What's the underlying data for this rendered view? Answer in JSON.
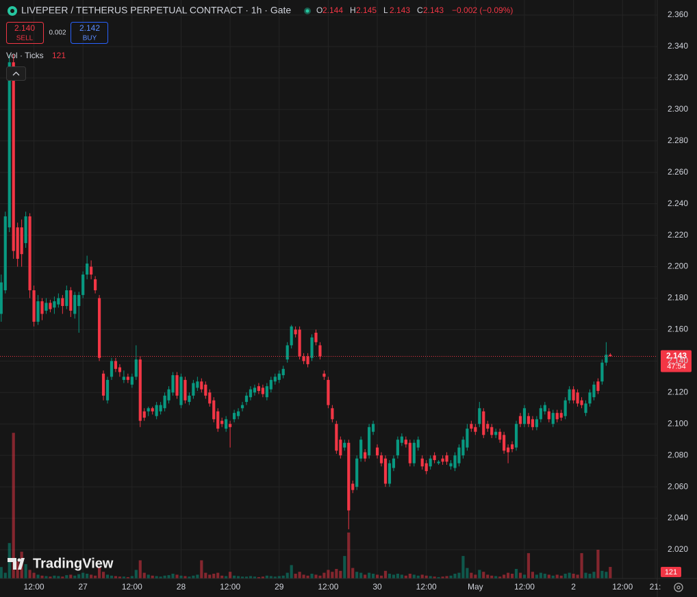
{
  "chart_data": {
    "type": "candlestick",
    "title": "LIVEPEER / TETHERUS PERPETUAL CONTRACT · 1h · Gate",
    "legend_ohlc": [
      {
        "label": "O",
        "value": 2.144
      },
      {
        "label": "H",
        "value": 2.145
      },
      {
        "label": "L",
        "value": 2.143
      },
      {
        "label": "C",
        "value": 2.143
      }
    ],
    "change": "−0.002 (−0.09%)",
    "sell": {
      "price": {
        "value": 2.14,
        "label": "2.140"
      },
      "label": "SELL"
    },
    "spread": 0.002,
    "buy": {
      "price": 2.142,
      "label": "BUY"
    },
    "volume_title": "Vol · Ticks",
    "watermark": "TradingView",
    "last_price": 2.143,
    "countdown": "47:54",
    "up_color": "#089981",
    "down_color": "#f23645",
    "xlim": [
      -0.3,
      160.5
    ],
    "xticks": [
      {
        "value": 8,
        "label": "12:00"
      },
      {
        "value": 20,
        "label": "27"
      },
      {
        "value": 32,
        "label": "12:00"
      },
      {
        "value": 44,
        "label": "28"
      },
      {
        "value": 56,
        "label": "12:00"
      },
      {
        "value": 68,
        "label": "29"
      },
      {
        "value": 80,
        "label": "12:00"
      },
      {
        "value": 92,
        "label": "30"
      },
      {
        "value": 104,
        "label": "12:00"
      },
      {
        "value": 116,
        "label": "May"
      },
      {
        "value": 128,
        "label": "12:00"
      },
      {
        "value": 140,
        "label": "2"
      },
      {
        "value": 152,
        "label": "12:00"
      },
      {
        "value": 160,
        "label": "21:"
      }
    ],
    "ylim": [
      2.0017,
      2.3696
    ],
    "yticks": [
      {
        "value": 2.02,
        "label": "2.020"
      },
      {
        "value": 2.04,
        "label": "2.040"
      },
      {
        "value": 2.06,
        "label": "2.060"
      },
      {
        "value": 2.08,
        "label": "2.080"
      },
      {
        "value": 2.1,
        "label": "2.100"
      },
      {
        "value": 2.12,
        "label": "2.120"
      },
      {
        "value": 2.14,
        "label": "2.140"
      },
      {
        "value": 2.16,
        "label": "2.160"
      },
      {
        "value": 2.18,
        "label": "2.180"
      },
      {
        "value": 2.2,
        "label": "2.200"
      },
      {
        "value": 2.22,
        "label": "2.220"
      },
      {
        "value": 2.24,
        "label": "2.240"
      },
      {
        "value": 2.26,
        "label": "2.260"
      },
      {
        "value": 2.28,
        "label": "2.280"
      },
      {
        "value": 2.3,
        "label": "2.300"
      },
      {
        "value": 2.32,
        "label": "2.320"
      },
      {
        "value": 2.34,
        "label": "2.340"
      },
      {
        "value": 2.36,
        "label": "2.360"
      }
    ],
    "grid": true,
    "candles": [
      [
        2.17,
        2.195,
        2.165,
        2.19
      ],
      [
        2.185,
        2.235,
        2.183,
        2.232
      ],
      [
        2.225,
        2.335,
        2.222,
        2.33
      ],
      [
        2.33,
        2.335,
        2.205,
        2.21
      ],
      [
        2.225,
        2.228,
        2.2,
        2.205
      ],
      [
        2.225,
        2.23,
        2.2,
        2.208
      ],
      [
        2.215,
        2.235,
        2.212,
        2.232
      ],
      [
        2.232,
        2.234,
        2.18,
        2.185
      ],
      [
        2.185,
        2.188,
        2.162,
        2.165
      ],
      [
        2.165,
        2.182,
        2.163,
        2.178
      ],
      [
        2.178,
        2.18,
        2.166,
        2.17
      ],
      [
        2.172,
        2.18,
        2.17,
        2.177
      ],
      [
        2.177,
        2.179,
        2.171,
        2.173
      ],
      [
        2.174,
        2.181,
        2.17,
        2.178
      ],
      [
        2.176,
        2.183,
        2.174,
        2.18
      ],
      [
        2.18,
        2.182,
        2.17,
        2.175
      ],
      [
        2.175,
        2.188,
        2.173,
        2.185
      ],
      [
        2.185,
        2.187,
        2.168,
        2.172
      ],
      [
        2.17,
        2.184,
        2.167,
        2.182
      ],
      [
        2.175,
        2.184,
        2.158,
        2.182
      ],
      [
        2.182,
        2.197,
        2.18,
        2.195
      ],
      [
        2.195,
        2.207,
        2.192,
        2.202
      ],
      [
        2.2,
        2.204,
        2.192,
        2.195
      ],
      [
        2.192,
        2.194,
        2.183,
        2.185
      ],
      [
        2.18,
        2.182,
        2.14,
        2.142
      ],
      [
        2.132,
        2.134,
        2.115,
        2.118
      ],
      [
        2.115,
        2.13,
        2.113,
        2.128
      ],
      [
        2.13,
        2.142,
        2.128,
        2.14
      ],
      [
        2.14,
        2.142,
        2.133,
        2.135
      ],
      [
        2.136,
        2.138,
        2.13,
        2.133
      ],
      [
        2.128,
        2.134,
        2.126,
        2.13
      ],
      [
        2.13,
        2.132,
        2.126,
        2.128
      ],
      [
        2.125,
        2.132,
        2.123,
        2.13
      ],
      [
        2.13,
        2.15,
        2.128,
        2.141
      ],
      [
        2.141,
        2.143,
        2.098,
        2.102
      ],
      [
        2.108,
        2.11,
        2.102,
        2.104
      ],
      [
        2.108,
        2.111,
        2.105,
        2.11
      ],
      [
        2.11,
        2.111,
        2.106,
        2.108
      ],
      [
        2.105,
        2.114,
        2.103,
        2.112
      ],
      [
        2.108,
        2.114,
        2.106,
        2.112
      ],
      [
        2.11,
        2.12,
        2.108,
        2.118
      ],
      [
        2.115,
        2.124,
        2.113,
        2.122
      ],
      [
        2.12,
        2.133,
        2.118,
        2.131
      ],
      [
        2.131,
        2.133,
        2.116,
        2.118
      ],
      [
        2.112,
        2.132,
        2.11,
        2.13
      ],
      [
        2.128,
        2.13,
        2.113,
        2.115
      ],
      [
        2.114,
        2.12,
        2.112,
        2.118
      ],
      [
        2.118,
        2.128,
        2.116,
        2.126
      ],
      [
        2.123,
        2.13,
        2.121,
        2.127
      ],
      [
        2.127,
        2.129,
        2.12,
        2.122
      ],
      [
        2.125,
        2.127,
        2.116,
        2.118
      ],
      [
        2.12,
        2.122,
        2.111,
        2.113
      ],
      [
        2.115,
        2.117,
        2.101,
        2.103
      ],
      [
        2.108,
        2.11,
        2.095,
        2.097
      ],
      [
        2.102,
        2.104,
        2.098,
        2.1
      ],
      [
        2.097,
        2.105,
        2.095,
        2.103
      ],
      [
        2.1,
        2.102,
        2.085,
        2.098
      ],
      [
        2.103,
        2.109,
        2.101,
        2.107
      ],
      [
        2.105,
        2.11,
        2.103,
        2.108
      ],
      [
        2.11,
        2.114,
        2.108,
        2.112
      ],
      [
        2.114,
        2.12,
        2.112,
        2.118
      ],
      [
        2.117,
        2.124,
        2.115,
        2.122
      ],
      [
        2.12,
        2.125,
        2.118,
        2.123
      ],
      [
        2.124,
        2.126,
        2.119,
        2.121
      ],
      [
        2.123,
        2.125,
        2.117,
        2.119
      ],
      [
        2.117,
        2.126,
        2.115,
        2.124
      ],
      [
        2.122,
        2.13,
        2.12,
        2.128
      ],
      [
        2.127,
        2.132,
        2.125,
        2.13
      ],
      [
        2.128,
        2.134,
        2.126,
        2.132
      ],
      [
        2.131,
        2.137,
        2.129,
        2.135
      ],
      [
        2.141,
        2.152,
        2.139,
        2.15
      ],
      [
        2.15,
        2.163,
        2.148,
        2.162
      ],
      [
        2.16,
        2.162,
        2.155,
        2.157
      ],
      [
        2.16,
        2.162,
        2.141,
        2.143
      ],
      [
        2.143,
        2.145,
        2.138,
        2.14
      ],
      [
        2.143,
        2.145,
        2.136,
        2.138
      ],
      [
        2.142,
        2.157,
        2.14,
        2.155
      ],
      [
        2.158,
        2.16,
        2.15,
        2.152
      ],
      [
        2.15,
        2.152,
        2.141,
        2.143
      ],
      [
        2.132,
        2.134,
        2.128,
        2.13
      ],
      [
        2.128,
        2.13,
        2.11,
        2.112
      ],
      [
        2.11,
        2.112,
        2.101,
        2.103
      ],
      [
        2.1,
        2.102,
        2.081,
        2.083
      ],
      [
        2.09,
        2.092,
        2.078,
        2.08
      ],
      [
        2.085,
        2.09,
        2.083,
        2.088
      ],
      [
        2.088,
        2.09,
        2.033,
        2.045
      ],
      [
        2.062,
        2.064,
        2.056,
        2.058
      ],
      [
        2.06,
        2.08,
        2.058,
        2.078
      ],
      [
        2.078,
        2.092,
        2.076,
        2.09
      ],
      [
        2.082,
        2.084,
        2.076,
        2.078
      ],
      [
        2.08,
        2.1,
        2.078,
        2.098
      ],
      [
        2.095,
        2.102,
        2.093,
        2.1
      ],
      [
        2.085,
        2.087,
        2.078,
        2.08
      ],
      [
        2.08,
        2.082,
        2.073,
        2.075
      ],
      [
        2.078,
        2.08,
        2.06,
        2.062
      ],
      [
        2.062,
        2.077,
        2.06,
        2.075
      ],
      [
        2.072,
        2.08,
        2.07,
        2.078
      ],
      [
        2.08,
        2.092,
        2.078,
        2.09
      ],
      [
        2.088,
        2.094,
        2.086,
        2.092
      ],
      [
        2.09,
        2.092,
        2.085,
        2.087
      ],
      [
        2.088,
        2.09,
        2.073,
        2.075
      ],
      [
        2.075,
        2.09,
        2.073,
        2.088
      ],
      [
        2.085,
        2.092,
        2.083,
        2.09
      ],
      [
        2.078,
        2.08,
        2.071,
        2.073
      ],
      [
        2.075,
        2.077,
        2.068,
        2.07
      ],
      [
        2.073,
        2.08,
        2.071,
        2.078
      ],
      [
        2.08,
        2.082,
        2.075,
        2.077
      ],
      [
        2.075,
        2.077,
        2.074,
        2.076
      ],
      [
        2.078,
        2.08,
        2.074,
        2.076
      ],
      [
        2.08,
        2.082,
        2.074,
        2.076
      ],
      [
        2.073,
        2.077,
        2.071,
        2.075
      ],
      [
        2.072,
        2.082,
        2.07,
        2.08
      ],
      [
        2.075,
        2.087,
        2.073,
        2.085
      ],
      [
        2.08,
        2.092,
        2.078,
        2.09
      ],
      [
        2.085,
        2.1,
        2.083,
        2.097
      ],
      [
        2.1,
        2.102,
        2.095,
        2.097
      ],
      [
        2.098,
        2.1,
        2.093,
        2.095
      ],
      [
        2.1,
        2.114,
        2.098,
        2.11
      ],
      [
        2.108,
        2.11,
        2.091,
        2.093
      ],
      [
        2.1,
        2.102,
        2.095,
        2.097
      ],
      [
        2.098,
        2.1,
        2.091,
        2.093
      ],
      [
        2.093,
        2.097,
        2.091,
        2.095
      ],
      [
        2.095,
        2.097,
        2.088,
        2.09
      ],
      [
        2.093,
        2.095,
        2.081,
        2.083
      ],
      [
        2.085,
        2.087,
        2.075,
        2.082
      ],
      [
        2.087,
        2.089,
        2.082,
        2.084
      ],
      [
        2.085,
        2.102,
        2.083,
        2.1
      ],
      [
        2.105,
        2.107,
        2.098,
        2.1
      ],
      [
        2.1,
        2.112,
        2.098,
        2.11
      ],
      [
        2.105,
        2.107,
        2.098,
        2.1
      ],
      [
        2.103,
        2.105,
        2.096,
        2.098
      ],
      [
        2.098,
        2.105,
        2.096,
        2.103
      ],
      [
        2.103,
        2.112,
        2.101,
        2.11
      ],
      [
        2.108,
        2.114,
        2.106,
        2.112
      ],
      [
        2.108,
        2.11,
        2.101,
        2.103
      ],
      [
        2.1,
        2.109,
        2.098,
        2.107
      ],
      [
        2.107,
        2.109,
        2.101,
        2.103
      ],
      [
        2.107,
        2.109,
        2.102,
        2.104
      ],
      [
        2.105,
        2.117,
        2.103,
        2.115
      ],
      [
        2.115,
        2.124,
        2.113,
        2.122
      ],
      [
        2.122,
        2.124,
        2.113,
        2.115
      ],
      [
        2.12,
        2.122,
        2.111,
        2.113
      ],
      [
        2.115,
        2.117,
        2.11,
        2.112
      ],
      [
        2.107,
        2.115,
        2.105,
        2.113
      ],
      [
        2.113,
        2.122,
        2.111,
        2.12
      ],
      [
        2.117,
        2.127,
        2.115,
        2.125
      ],
      [
        2.127,
        2.129,
        2.119,
        2.121
      ],
      [
        2.127,
        2.141,
        2.125,
        2.139
      ],
      [
        2.139,
        2.152,
        2.137,
        2.144
      ],
      [
        2.144,
        2.145,
        2.143,
        2.143
      ]
    ],
    "volumes": [
      120,
      60,
      370,
      1520,
      180,
      280,
      150,
      90,
      60,
      40,
      30,
      25,
      20,
      30,
      25,
      20,
      35,
      40,
      30,
      45,
      60,
      50,
      40,
      30,
      120,
      70,
      40,
      30,
      25,
      20,
      20,
      15,
      25,
      90,
      190,
      60,
      40,
      30,
      25,
      20,
      30,
      35,
      50,
      40,
      30,
      25,
      20,
      30,
      40,
      190,
      60,
      40,
      50,
      60,
      30,
      25,
      70,
      30,
      25,
      20,
      20,
      25,
      20,
      15,
      20,
      30,
      25,
      20,
      25,
      30,
      60,
      140,
      50,
      70,
      40,
      30,
      50,
      40,
      30,
      60,
      90,
      70,
      100,
      80,
      235,
      480,
      110,
      70,
      60,
      40,
      60,
      50,
      40,
      30,
      80,
      50,
      40,
      50,
      40,
      30,
      50,
      40,
      30,
      40,
      30,
      25,
      20,
      15,
      20,
      25,
      30,
      50,
      60,
      235,
      110,
      60,
      40,
      90,
      70,
      40,
      30,
      25,
      20,
      40,
      60,
      50,
      100,
      60,
      40,
      265,
      70,
      40,
      60,
      50,
      40,
      30,
      40,
      30,
      50,
      60,
      50,
      40,
      265,
      60,
      50,
      70,
      300,
      80,
      70,
      121
    ]
  }
}
